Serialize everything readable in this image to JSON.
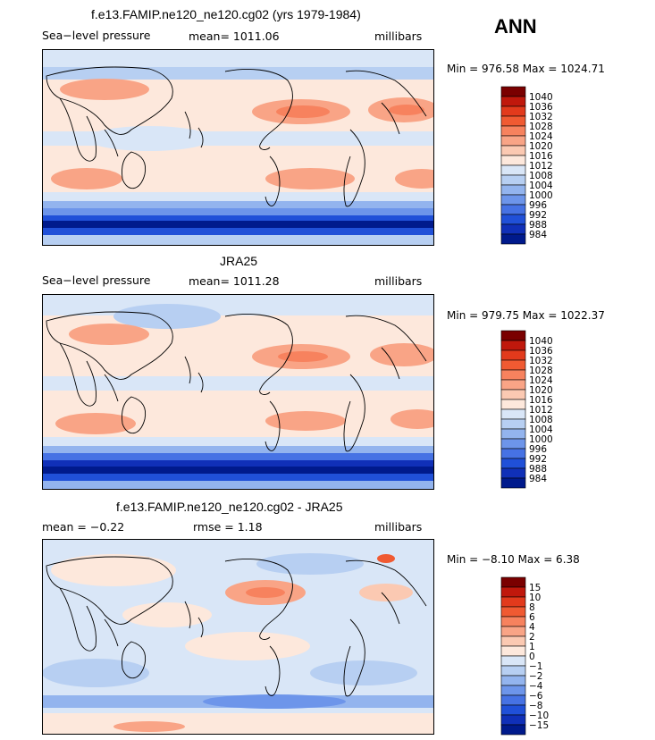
{
  "season": "ANN",
  "panels": [
    {
      "title": "f.e13.FAMIP.ne120_ne120.cg02 (yrs 1979-1984)",
      "left_label": "Sea−level pressure",
      "center_label": "mean= 1011.06",
      "right_label": "millibars",
      "minmax": "Min = 976.58 Max = 1024.71",
      "colorbar_labels": [
        "1040",
        "1036",
        "1032",
        "1028",
        "1024",
        "1020",
        "1016",
        "1012",
        "1008",
        "1004",
        "1000",
        "996",
        "992",
        "988",
        "984"
      ]
    },
    {
      "title": "JRA25",
      "left_label": "Sea−level pressure",
      "center_label": "mean= 1011.28",
      "right_label": "millibars",
      "minmax": "Min = 979.75 Max = 1022.37",
      "colorbar_labels": [
        "1040",
        "1036",
        "1032",
        "1028",
        "1024",
        "1020",
        "1016",
        "1012",
        "1008",
        "1004",
        "1000",
        "996",
        "992",
        "988",
        "984"
      ]
    },
    {
      "title": "f.e13.FAMIP.ne120_ne120.cg02 - JRA25",
      "left_label": "mean =  −0.22",
      "center_label": "rmse =   1.18",
      "right_label": "millibars",
      "minmax": "Min =  −8.10 Max =   6.38",
      "colorbar_labels": [
        "15",
        "10",
        "8",
        "6",
        "4",
        "2",
        "1",
        "0",
        "−1",
        "−2",
        "−4",
        "−6",
        "−8",
        "−10",
        "−15"
      ]
    }
  ],
  "colors": {
    "palette": [
      "#7a0000",
      "#c0180c",
      "#e23a1c",
      "#f05a32",
      "#f7825e",
      "#f9a486",
      "#fbc9b2",
      "#fde8dc",
      "#d9e6f7",
      "#b7cff2",
      "#93b4ee",
      "#6d95ea",
      "#4672e4",
      "#2050d8",
      "#1030b8",
      "#001a8c"
    ]
  }
}
